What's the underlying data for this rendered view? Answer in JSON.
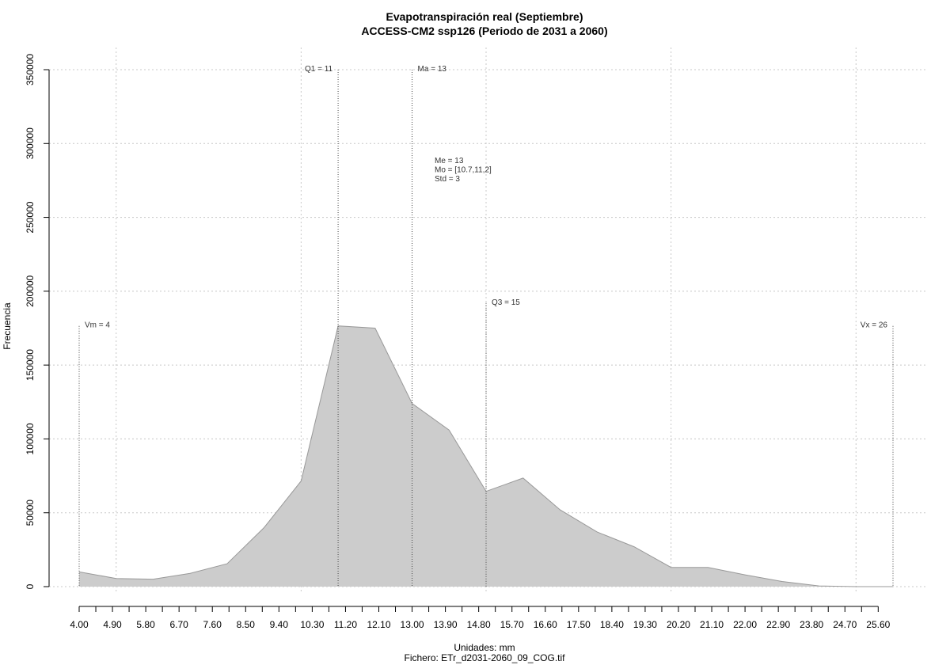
{
  "chart_data": {
    "type": "area",
    "title": "Evapotranspiración real (Septiembre)",
    "subtitle": "ACCESS-CM2 ssp126 (Periodo de 2031 a 2060)",
    "xlabel": "Unidades: mm",
    "xlabel2": "Fichero: ETr_d2031-2060_09_COG.tif",
    "ylabel": "Frecuencia",
    "xlim": [
      4,
      26
    ],
    "ylim": [
      0,
      350000
    ],
    "grid": true,
    "fill_color": "#cccccc",
    "line_color": "#999999",
    "x": [
      4,
      5,
      6,
      7,
      8,
      9,
      10,
      11,
      12,
      13,
      14,
      15,
      16,
      17,
      18,
      19,
      20,
      21,
      22,
      23,
      24,
      25,
      26
    ],
    "y": [
      10000,
      5500,
      5000,
      9000,
      15500,
      40000,
      71500,
      176500,
      175000,
      124000,
      106000,
      64500,
      73500,
      52000,
      37000,
      27000,
      13000,
      13000,
      8000,
      3500,
      500,
      0,
      0
    ],
    "x_tick_values": [
      4.0,
      4.9,
      5.8,
      6.7,
      7.6,
      8.5,
      9.4,
      10.3,
      11.2,
      12.1,
      13.0,
      13.9,
      14.8,
      15.7,
      16.6,
      17.5,
      18.4,
      19.3,
      20.2,
      21.1,
      22.0,
      22.9,
      23.8,
      24.7,
      25.6
    ],
    "x_tick_labels": [
      "4.00",
      "4.90",
      "5.80",
      "6.70",
      "7.60",
      "8.50",
      "9.40",
      "10.30",
      "11.20",
      "12.10",
      "13.00",
      "13.90",
      "14.80",
      "15.70",
      "16.60",
      "17.50",
      "18.40",
      "19.30",
      "20.20",
      "21.10",
      "22.00",
      "22.90",
      "23.80",
      "24.70",
      "25.60"
    ],
    "y_tick_values": [
      0,
      50000,
      100000,
      150000,
      200000,
      250000,
      300000,
      350000
    ],
    "y_tick_labels": [
      "0",
      "50000",
      "100000",
      "150000",
      "200000",
      "250000",
      "300000",
      "350000"
    ],
    "markers": [
      {
        "label": "Vm = 4",
        "x": 4,
        "top": 176500,
        "side": "right"
      },
      {
        "label": "Q1 = 11",
        "x": 11,
        "top": 350000,
        "side": "left"
      },
      {
        "label": "Ma = 13",
        "x": 13,
        "top": 350000,
        "side": "right"
      },
      {
        "label": "Q3 = 15",
        "x": 15,
        "top": 192000,
        "side": "right"
      },
      {
        "label": "Vx = 26",
        "x": 26,
        "top": 176500,
        "side": "left"
      }
    ],
    "stats": [
      "Me = 13",
      "Mo = [10.7,11,2]",
      "Std = 3"
    ]
  }
}
